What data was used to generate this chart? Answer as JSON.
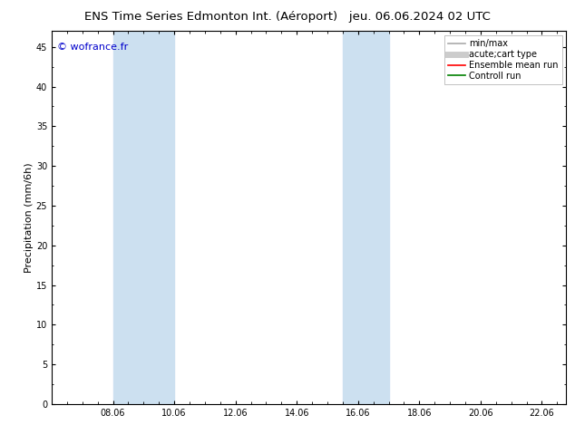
{
  "title_left": "ENS Time Series Edmonton Int. (Aéroport)",
  "title_right": "jeu. 06.06.2024 02 UTC",
  "ylabel": "Precipitation (mm/6h)",
  "watermark": "© wofrance.fr",
  "background_color": "#ffffff",
  "plot_bg_color": "#ffffff",
  "ylim": [
    0,
    47
  ],
  "yticks": [
    0,
    5,
    10,
    15,
    20,
    25,
    30,
    35,
    40,
    45
  ],
  "xlim_start": 6.0,
  "xlim_end": 22.8,
  "xtick_labels": [
    "08.06",
    "10.06",
    "12.06",
    "14.06",
    "16.06",
    "18.06",
    "20.06",
    "22.06"
  ],
  "xtick_positions": [
    8.0,
    10.0,
    12.0,
    14.0,
    16.0,
    18.0,
    20.0,
    22.0
  ],
  "shaded_regions": [
    {
      "x_start": 8.0,
      "x_end": 10.0,
      "color": "#cce0f0",
      "alpha": 1.0
    },
    {
      "x_start": 15.5,
      "x_end": 17.0,
      "color": "#cce0f0",
      "alpha": 1.0
    }
  ],
  "legend_entries": [
    {
      "label": "min/max",
      "color": "#aaaaaa",
      "lw": 1.2
    },
    {
      "label": "acute;cart type",
      "color": "#cccccc",
      "lw": 5
    },
    {
      "label": "Ensemble mean run",
      "color": "#ff0000",
      "lw": 1.2
    },
    {
      "label": "Controll run",
      "color": "#008000",
      "lw": 1.2
    }
  ],
  "title_fontsize": 9.5,
  "tick_fontsize": 7,
  "ylabel_fontsize": 8,
  "watermark_color": "#0000cc",
  "watermark_fontsize": 8,
  "legend_fontsize": 7
}
